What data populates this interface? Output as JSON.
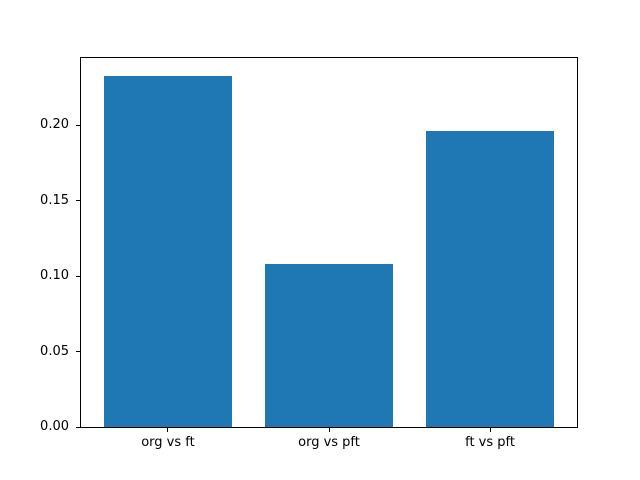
{
  "chart_data": {
    "type": "bar",
    "title": "",
    "xlabel": "",
    "ylabel": "",
    "categories": [
      "org vs ft",
      "org vs pft",
      "ft vs pft"
    ],
    "values": [
      0.233,
      0.108,
      0.196
    ],
    "yticks": [
      0.0,
      0.05,
      0.1,
      0.15,
      0.2
    ],
    "ytick_labels": [
      "0.00",
      "0.05",
      "0.10",
      "0.15",
      "0.20"
    ],
    "ylim": [
      0,
      0.2447
    ],
    "xlim": [
      -0.54,
      2.54
    ],
    "bar_width": 0.8,
    "grid": false,
    "legend": false,
    "bar_color": "#1f77b4",
    "axis_color": "#000000",
    "background_color": "#ffffff"
  }
}
